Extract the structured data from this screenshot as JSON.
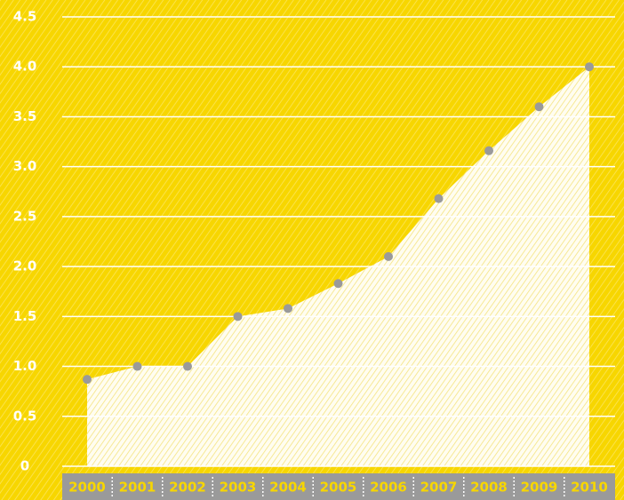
{
  "chart_data": {
    "type": "area",
    "categories": [
      "2000",
      "2001",
      "2002",
      "2003",
      "2004",
      "2005",
      "2006",
      "2007",
      "2008",
      "2009",
      "2010"
    ],
    "values": [
      0.87,
      1.0,
      1.0,
      1.5,
      1.58,
      1.83,
      2.1,
      2.68,
      3.16,
      3.6,
      4.0
    ],
    "color": "#fffbe0",
    "marker_color": "#9a9a9a",
    "ylim": [
      0,
      4.5
    ],
    "yticks": [
      0,
      0.5,
      {
        "value": 1,
        "label": "1.0"
      },
      1.5,
      {
        "value": 2,
        "label": "2.0"
      },
      2.5,
      {
        "value": 3,
        "label": "3.0"
      },
      3.5,
      {
        "value": 4,
        "label": "4.0"
      },
      4.5
    ],
    "grid": true
  }
}
